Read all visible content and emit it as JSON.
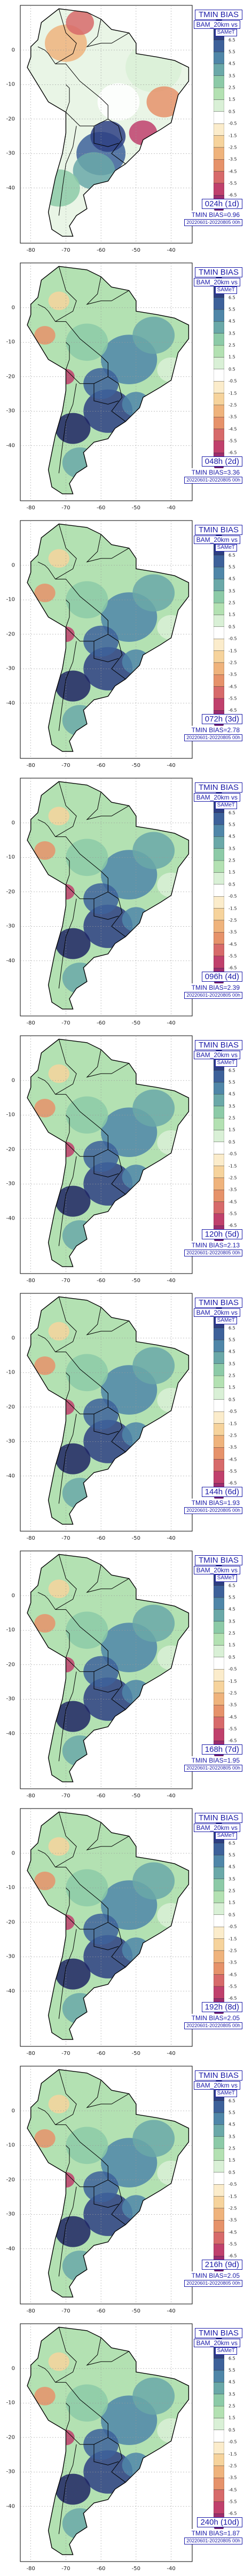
{
  "map_title": "TMIN BIAS",
  "model": "BAM_20km vs",
  "reference": "SAMeT",
  "period": "20220601-20220805 00h",
  "x_ticks": [
    "-80",
    "-70",
    "-60",
    "-50",
    "-40"
  ],
  "y_ticks": [
    "0",
    "-10",
    "-20",
    "-30",
    "-40"
  ],
  "colorbar_ticks": [
    "-7.5",
    "-6.5",
    "-5.5",
    "-4.5",
    "-3.5",
    "-2.5",
    "-1.5",
    "-0.5",
    "0.5",
    "1.5",
    "2.5",
    "3.5",
    "4.5",
    "5.5",
    "6.5",
    "7.5"
  ],
  "colorbar_colors": [
    "#6b1a6e",
    "#9c2d6e",
    "#c0406c",
    "#d76a6a",
    "#e6926a",
    "#efb37c",
    "#f6d39c",
    "#fbeccb",
    "#ffffff",
    "#d9f0d6",
    "#b3e1b2",
    "#8ccaa7",
    "#6aa8a8",
    "#4f86a8",
    "#3d619a",
    "#2e3f82",
    "#1f2563"
  ],
  "panels": [
    {
      "lead": "024h (1d)",
      "bias": "TMIN BIAS=0.96"
    },
    {
      "lead": "048h (2d)",
      "bias": "TMIN BIAS=3.36"
    },
    {
      "lead": "072h (3d)",
      "bias": "TMIN BIAS=2.78"
    },
    {
      "lead": "096h (4d)",
      "bias": "TMIN BIAS=2.39"
    },
    {
      "lead": "120h (5d)",
      "bias": "TMIN BIAS=2.13"
    },
    {
      "lead": "144h (6d)",
      "bias": "TMIN BIAS=1.93"
    },
    {
      "lead": "168h (7d)",
      "bias": "TMIN BIAS=1.95"
    },
    {
      "lead": "192h (8d)",
      "bias": "TMIN BIAS=2.05"
    },
    {
      "lead": "216h (9d)",
      "bias": "TMIN BIAS=2.05"
    },
    {
      "lead": "240h (10d)",
      "bias": "TMIN BIAS=1.87"
    }
  ]
}
